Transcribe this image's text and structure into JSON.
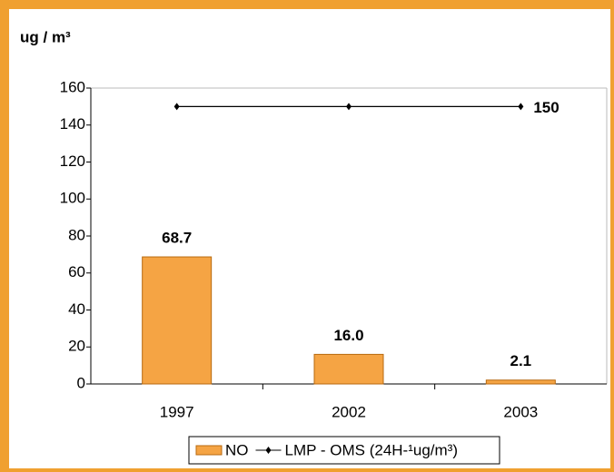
{
  "chart_data": {
    "type": "bar",
    "ylabel": "ug / m³",
    "categories": [
      "1997",
      "2002",
      "2003"
    ],
    "series": [
      {
        "name": "NO",
        "type": "bar",
        "color": "#f5a444",
        "values": [
          68.7,
          16.0,
          2.1
        ],
        "value_labels": [
          "68.7",
          "16.0",
          "2.1"
        ]
      },
      {
        "name": "LMP - OMS (24H-¹ug/m³)",
        "type": "line",
        "color": "#000000",
        "values": [
          150,
          150,
          150
        ],
        "value_labels": [
          null,
          null,
          "150"
        ]
      }
    ],
    "ylim": [
      0,
      160
    ],
    "yticks": [
      0,
      20,
      40,
      60,
      80,
      100,
      120,
      140,
      160
    ],
    "legend": "bottom"
  }
}
